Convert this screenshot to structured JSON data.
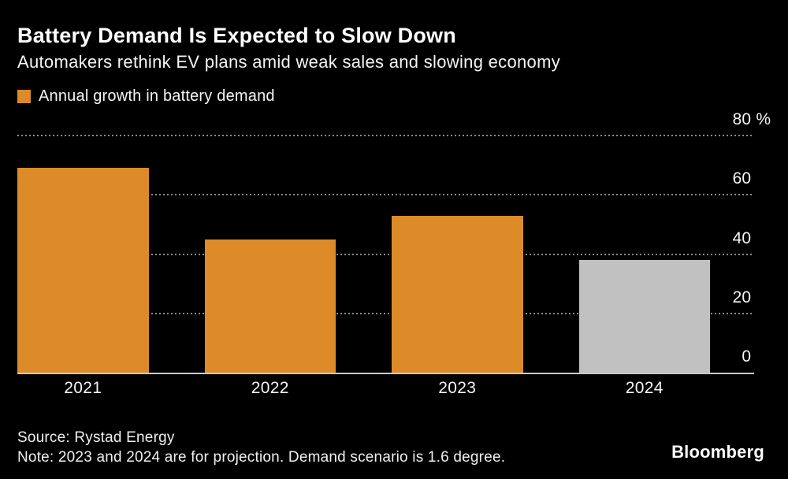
{
  "header": {
    "title": "Battery Demand Is Expected to Slow Down",
    "subtitle": "Automakers rethink EV plans amid weak sales and slowing economy"
  },
  "legend": {
    "label": "Annual growth in battery demand",
    "swatch_color": "#DC8B28"
  },
  "chart_data": {
    "type": "bar",
    "title": "Battery Demand Is Expected to Slow Down",
    "subtitle": "Automakers rethink EV plans amid weak sales and slowing economy",
    "legend_entries": [
      "Annual growth in battery demand"
    ],
    "legend_position": "top-left",
    "categories": [
      "2021",
      "2022",
      "2023",
      "2024"
    ],
    "values": [
      69,
      45,
      53,
      38
    ],
    "xlabel": "",
    "ylabel": "%",
    "ylim": [
      0,
      80
    ],
    "yticks": [
      0,
      20,
      40,
      60,
      80
    ],
    "ytick_labels": [
      "0",
      "20",
      "40",
      "60",
      "80 %"
    ],
    "grid": "horizontal dotted",
    "bar_colors": [
      "#DC8B28",
      "#DC8B28",
      "#DC8B28",
      "#C1C1C1"
    ]
  },
  "footer": {
    "source": "Source: Rystad Energy",
    "note": "Note: 2023 and 2024 are for projection. Demand scenario is 1.6 degree.",
    "brand": "Bloomberg"
  },
  "colors": {
    "background": "#000000",
    "text": "#FFFFFF",
    "accent_orange": "#DC8B28",
    "projection_gray": "#C1C1C1",
    "gridline": "#8A8A8A",
    "axis_line": "#C9C9C9"
  }
}
